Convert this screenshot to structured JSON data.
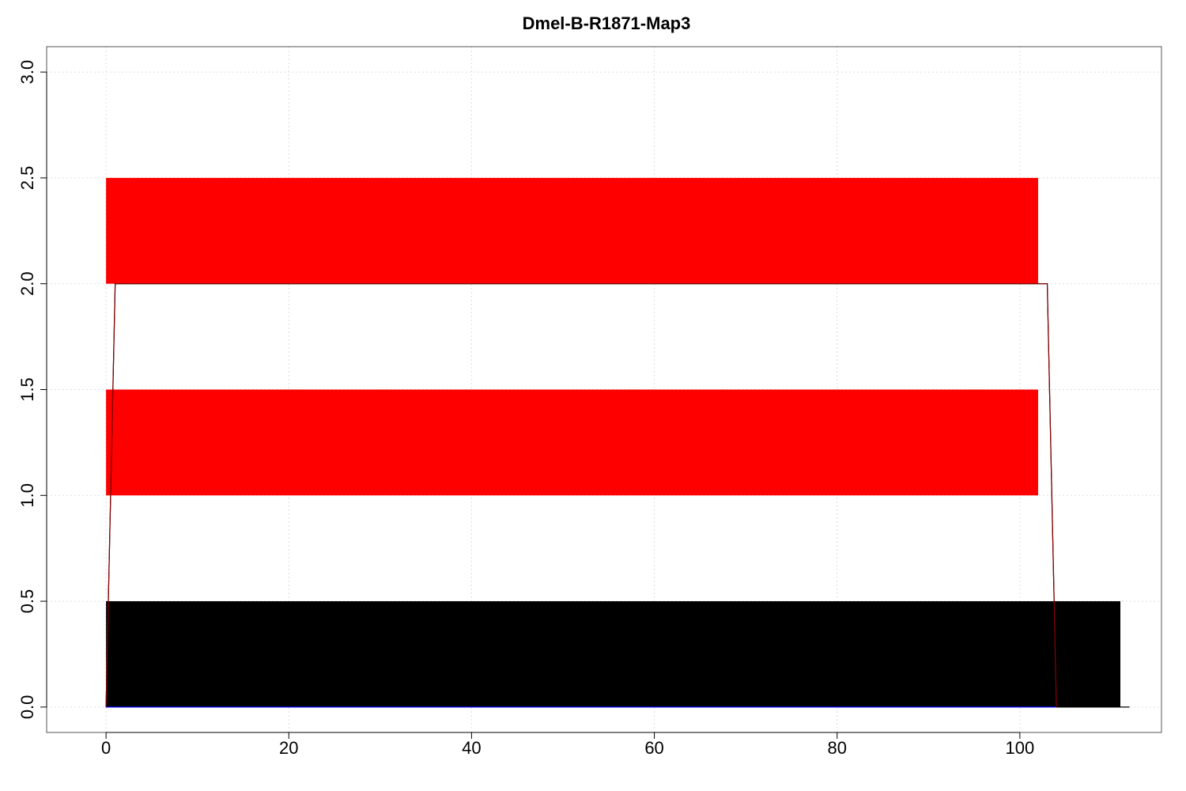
{
  "chart_data": {
    "type": "bar",
    "orientation": "horizontal",
    "title": "Dmel-B-R1871-Map3",
    "xlabel": "",
    "ylabel": "",
    "xlim": [
      -6.5,
      115.5
    ],
    "ylim": [
      -0.12,
      3.12
    ],
    "x_ticks": [
      0,
      20,
      40,
      60,
      80,
      100
    ],
    "x_tick_labels": [
      "0",
      "20",
      "40",
      "60",
      "80",
      "100"
    ],
    "y_ticks": [
      0.0,
      0.5,
      1.0,
      1.5,
      2.0,
      2.5,
      3.0
    ],
    "y_tick_labels": [
      "0.0",
      "0.5",
      "1.0",
      "1.5",
      "2.0",
      "2.5",
      "3.0"
    ],
    "grid": true,
    "bars": [
      {
        "x_start": 0,
        "x_end": 111,
        "y_bottom": 0,
        "y_top": 0.5,
        "color": "#000000"
      },
      {
        "x_start": 0,
        "x_end": 102,
        "y_bottom": 1.0,
        "y_top": 1.5,
        "color": "#ff0000"
      },
      {
        "x_start": 0,
        "x_end": 102,
        "y_bottom": 2.0,
        "y_top": 2.5,
        "color": "#ff0000"
      }
    ],
    "series": [
      {
        "color": "#000000",
        "x": [
          0,
          1,
          103,
          104,
          112
        ],
        "y": [
          0,
          2,
          2,
          0,
          0
        ]
      },
      {
        "color": "#8b0000",
        "x": [
          0,
          1,
          103,
          104
        ],
        "y": [
          0,
          2,
          2,
          0
        ]
      },
      {
        "color": "#0000ff",
        "x": [
          0,
          104
        ],
        "y": [
          0,
          0
        ]
      }
    ]
  }
}
